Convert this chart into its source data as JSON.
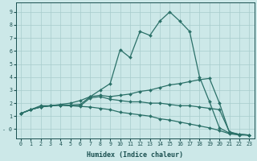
{
  "xlabel": "Humidex (Indice chaleur)",
  "bg_color": "#cce8e8",
  "grid_color": "#a8cccc",
  "line_color": "#2a7068",
  "text_color": "#1a5050",
  "xlim": [
    -0.5,
    23.5
  ],
  "ylim": [
    -0.7,
    9.7
  ],
  "xticks": [
    0,
    1,
    2,
    3,
    4,
    5,
    6,
    7,
    8,
    9,
    10,
    11,
    12,
    13,
    14,
    15,
    16,
    17,
    18,
    19,
    20,
    21,
    22,
    23
  ],
  "yticks": [
    0,
    1,
    2,
    3,
    4,
    5,
    6,
    7,
    8,
    9
  ],
  "yticklabels": [
    "- 0",
    "1",
    "2",
    "3",
    "4",
    "5",
    "6",
    "7",
    "8",
    "9"
  ],
  "series": [
    {
      "x": [
        0,
        1,
        2,
        3,
        4,
        5,
        6,
        7,
        8,
        9,
        10,
        11,
        12,
        13,
        14,
        15,
        16,
        17,
        18,
        19,
        20,
        21,
        22,
        23
      ],
      "y": [
        1.2,
        1.5,
        1.8,
        1.8,
        1.9,
        2.0,
        2.2,
        2.5,
        3.0,
        3.5,
        6.1,
        5.5,
        7.5,
        7.2,
        8.3,
        9.0,
        8.3,
        7.5,
        4.0,
        2.1,
        0.1,
        -0.3,
        -0.4,
        -0.45
      ]
    },
    {
      "x": [
        0,
        1,
        2,
        3,
        4,
        5,
        6,
        7,
        8,
        9,
        10,
        11,
        12,
        13,
        14,
        15,
        16,
        17,
        18,
        19,
        20,
        21,
        22,
        23
      ],
      "y": [
        1.2,
        1.5,
        1.7,
        1.8,
        1.85,
        1.85,
        1.9,
        2.5,
        2.6,
        2.5,
        2.6,
        2.7,
        2.9,
        3.0,
        3.2,
        3.4,
        3.5,
        3.65,
        3.8,
        3.9,
        2.0,
        -0.25,
        -0.4,
        -0.45
      ]
    },
    {
      "x": [
        0,
        1,
        2,
        3,
        4,
        5,
        6,
        7,
        8,
        9,
        10,
        11,
        12,
        13,
        14,
        15,
        16,
        17,
        18,
        19,
        20,
        21,
        22,
        23
      ],
      "y": [
        1.2,
        1.5,
        1.7,
        1.8,
        1.85,
        1.8,
        1.8,
        2.4,
        2.5,
        2.3,
        2.2,
        2.1,
        2.1,
        2.0,
        2.0,
        1.9,
        1.8,
        1.8,
        1.7,
        1.6,
        1.5,
        -0.2,
        -0.4,
        -0.45
      ]
    },
    {
      "x": [
        0,
        1,
        2,
        3,
        4,
        5,
        6,
        7,
        8,
        9,
        10,
        11,
        12,
        13,
        14,
        15,
        16,
        17,
        18,
        19,
        20,
        21,
        22,
        23
      ],
      "y": [
        1.2,
        1.5,
        1.7,
        1.8,
        1.85,
        1.8,
        1.75,
        1.7,
        1.6,
        1.5,
        1.3,
        1.2,
        1.1,
        1.0,
        0.8,
        0.7,
        0.55,
        0.4,
        0.25,
        0.1,
        -0.1,
        -0.35,
        -0.45,
        -0.45
      ]
    }
  ]
}
